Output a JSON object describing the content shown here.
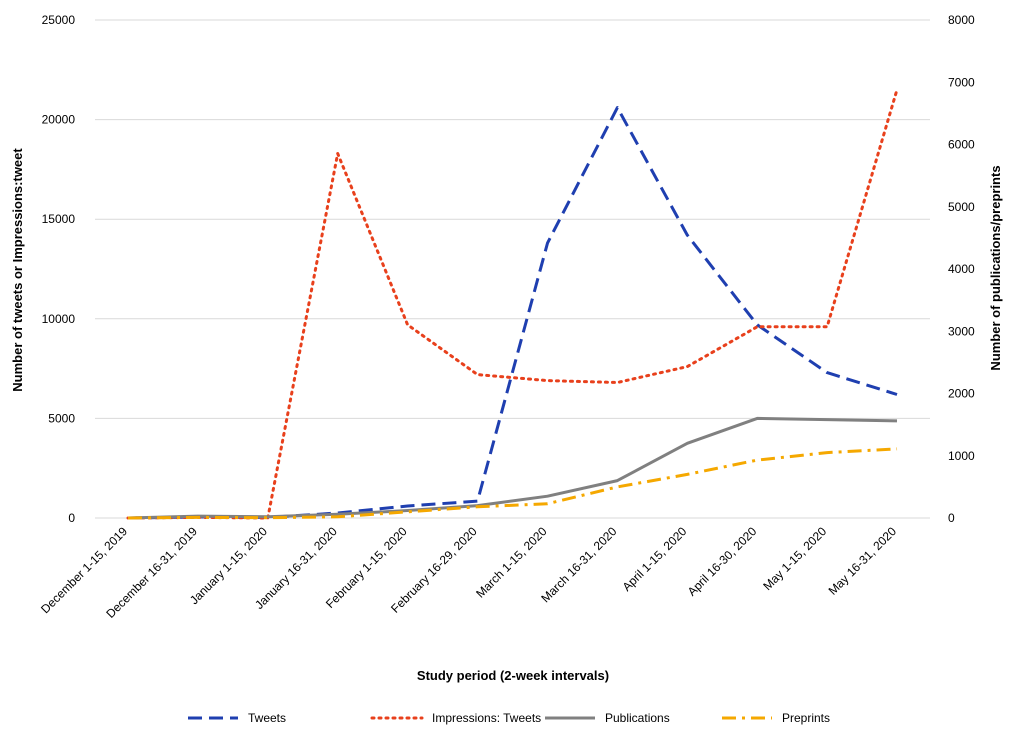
{
  "chart_data": {
    "type": "line",
    "title": "",
    "xlabel": "Study period (2-week intervals)",
    "ylabel_left": "Number of tweets or Impressions:tweet",
    "ylabel_right": "Number of publications/preprints",
    "categories": [
      "December 1-15, 2019",
      "December 16-31, 2019",
      "January 1-15, 2020",
      "January 16-31, 2020",
      "February 1-15, 2020",
      "February 16-29, 2020",
      "March 1-15, 2020",
      "March 16-31, 2020",
      "April 1-15, 2020",
      "April 16-30, 2020",
      "May 1-15, 2020",
      "May 16-31, 2020"
    ],
    "ylim_left": [
      0,
      25000
    ],
    "yticks_left": [
      "0",
      "5000",
      "10000",
      "15000",
      "20000",
      "25000"
    ],
    "ylim_right": [
      0,
      8000
    ],
    "yticks_right": [
      "0",
      "1000",
      "2000",
      "3000",
      "4000",
      "5000",
      "6000",
      "7000",
      "8000"
    ],
    "grid": true,
    "legend_position": "bottom",
    "series": [
      {
        "name": "Tweets",
        "axis": "left",
        "color": "#1f3fb0",
        "dash": "dashed",
        "values": [
          0,
          50,
          30,
          250,
          600,
          850,
          13800,
          20600,
          14200,
          9700,
          7300,
          6200
        ]
      },
      {
        "name": "Impressions: Tweets",
        "axis": "left",
        "color": "#e8401c",
        "dash": "dotted",
        "values": [
          0,
          30,
          0,
          18300,
          9700,
          7200,
          6900,
          6800,
          7600,
          9600,
          9600,
          21500
        ]
      },
      {
        "name": "Publications",
        "axis": "right",
        "color": "#808080",
        "dash": "solid",
        "values": [
          0,
          30,
          20,
          60,
          120,
          200,
          350,
          600,
          1200,
          1600,
          1580,
          1560
        ]
      },
      {
        "name": "Preprints",
        "axis": "right",
        "color": "#f5a800",
        "dash": "dashdot",
        "values": [
          0,
          10,
          5,
          20,
          100,
          180,
          230,
          500,
          700,
          930,
          1050,
          1110
        ]
      }
    ]
  }
}
